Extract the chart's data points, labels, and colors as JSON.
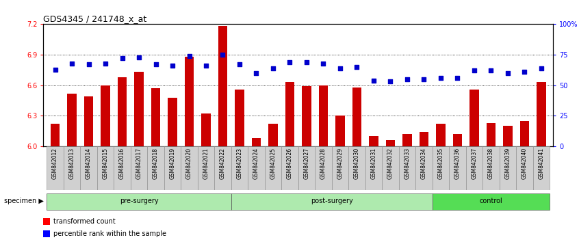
{
  "title": "GDS4345 / 241748_x_at",
  "samples": [
    "GSM842012",
    "GSM842013",
    "GSM842014",
    "GSM842015",
    "GSM842016",
    "GSM842017",
    "GSM842018",
    "GSM842019",
    "GSM842020",
    "GSM842021",
    "GSM842022",
    "GSM842023",
    "GSM842024",
    "GSM842025",
    "GSM842026",
    "GSM842027",
    "GSM842028",
    "GSM842029",
    "GSM842030",
    "GSM842031",
    "GSM842032",
    "GSM842033",
    "GSM842034",
    "GSM842035",
    "GSM842036",
    "GSM842037",
    "GSM842038",
    "GSM842039",
    "GSM842040",
    "GSM842041"
  ],
  "bar_values": [
    6.22,
    6.52,
    6.49,
    6.6,
    6.68,
    6.73,
    6.57,
    6.48,
    6.88,
    6.32,
    7.18,
    6.56,
    6.08,
    6.22,
    6.63,
    6.59,
    6.6,
    6.3,
    6.58,
    6.1,
    6.06,
    6.12,
    6.14,
    6.22,
    6.12,
    6.56,
    6.23,
    6.2,
    6.25,
    6.63
  ],
  "percentile_values": [
    63,
    68,
    67,
    68,
    72,
    73,
    67,
    66,
    74,
    66,
    75,
    67,
    60,
    64,
    69,
    69,
    68,
    64,
    65,
    54,
    53,
    55,
    55,
    56,
    56,
    62,
    62,
    60,
    61,
    64
  ],
  "groups": [
    {
      "label": "pre-surgery",
      "start": 0,
      "end": 11
    },
    {
      "label": "post-surgery",
      "start": 11,
      "end": 23
    },
    {
      "label": "control",
      "start": 23,
      "end": 30
    }
  ],
  "group_colors": [
    "#aeeaae",
    "#aeeaae",
    "#55dd55"
  ],
  "bar_color": "#cc0000",
  "dot_color": "#0000cc",
  "ylim_left": [
    6.0,
    7.2
  ],
  "ylim_right": [
    0,
    100
  ],
  "yticks_left": [
    6.0,
    6.3,
    6.6,
    6.9,
    7.2
  ],
  "yticks_right": [
    0,
    25,
    50,
    75,
    100
  ],
  "ytick_labels_right": [
    "0",
    "25",
    "50",
    "75",
    "100%"
  ],
  "hlines": [
    6.3,
    6.6,
    6.9
  ],
  "background_color": "#ffffff",
  "title_fontsize": 9,
  "sample_fontsize": 5.5,
  "legend_items": [
    "transformed count",
    "percentile rank within the sample"
  ],
  "specimen_label": "specimen"
}
